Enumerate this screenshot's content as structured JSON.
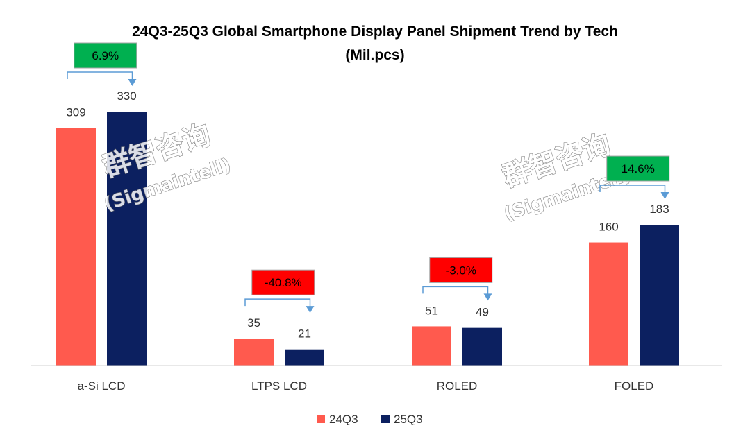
{
  "chart_data": {
    "type": "bar",
    "title": "24Q3-25Q3 Global Smartphone Display Panel Shipment Trend by Tech",
    "subtitle": "(Mil.pcs)",
    "categories": [
      "a-Si LCD",
      "LTPS LCD",
      "ROLED",
      "FOLED"
    ],
    "series": [
      {
        "name": "24Q3",
        "values": [
          309,
          35,
          51,
          160
        ],
        "color": "#ff5a4e"
      },
      {
        "name": "25Q3",
        "values": [
          330,
          21,
          49,
          183
        ],
        "color": "#0c2060"
      }
    ],
    "value_labels": [
      [
        "309",
        "35",
        "51",
        "160"
      ],
      [
        "330",
        "21",
        "49",
        "183"
      ]
    ],
    "changes": [
      "6.9%",
      "-40.8%",
      "-3.0%",
      "14.6%"
    ],
    "change_colors": [
      "#00b050",
      "#ff0000",
      "#ff0000",
      "#00b050"
    ],
    "ylim": [
      0,
      330
    ],
    "xlabel": "",
    "ylabel": "",
    "grid": false,
    "legend_position": "bottom"
  },
  "watermark": {
    "cn": "群智咨询",
    "en": "(Sigmaintell)"
  },
  "colors": {
    "arrow": "#5b9bd5",
    "axis": "#d0d0d0"
  }
}
